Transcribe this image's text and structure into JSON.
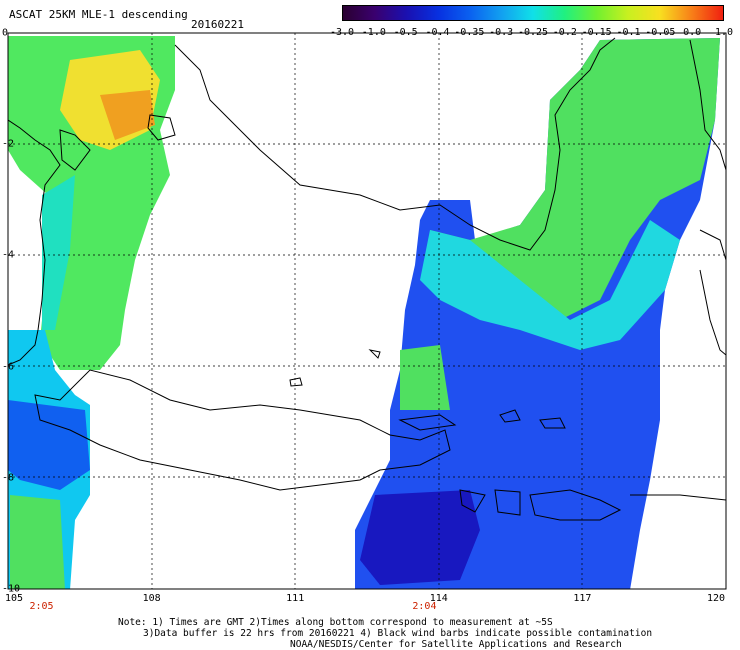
{
  "header": {
    "title": "ASCAT 25KM MLE-1 descending",
    "date": "20160221"
  },
  "colorbar": {
    "labels": [
      "-3.0",
      "-1.0",
      "-0.5",
      "-0.4",
      "-0.35",
      "-0.3",
      "-0.25",
      "-0.2",
      "-0.15",
      "-0.1",
      "-0.05",
      "0.0",
      "1.0"
    ],
    "colors": [
      "#2a0030",
      "#3a006e",
      "#1a10b0",
      "#0830e0",
      "#0a60f0",
      "#12a0f0",
      "#10e0e8",
      "#20f080",
      "#70f030",
      "#c8f020",
      "#f8e020",
      "#f88018",
      "#f02010"
    ]
  },
  "map": {
    "y_labels": [
      "0",
      "-2",
      "-4",
      "-6",
      "-8",
      "-10"
    ],
    "x_labels": [
      "105",
      "108",
      "111",
      "114",
      "117",
      "120"
    ],
    "pass_times": [
      {
        "text": "2:05",
        "lon": 105.7
      },
      {
        "text": "2:04",
        "lon": 113.7
      }
    ]
  },
  "notes": {
    "line1": "Note: 1) Times are GMT 2)Times along bottom correspond to measurement at ~5S",
    "line2": "3)Data buffer is 22 hrs from 20160221 4) Black wind barbs indicate possible contamination",
    "line3": "NOAA/NESDIS/Center for Satellite Applications and Research"
  }
}
